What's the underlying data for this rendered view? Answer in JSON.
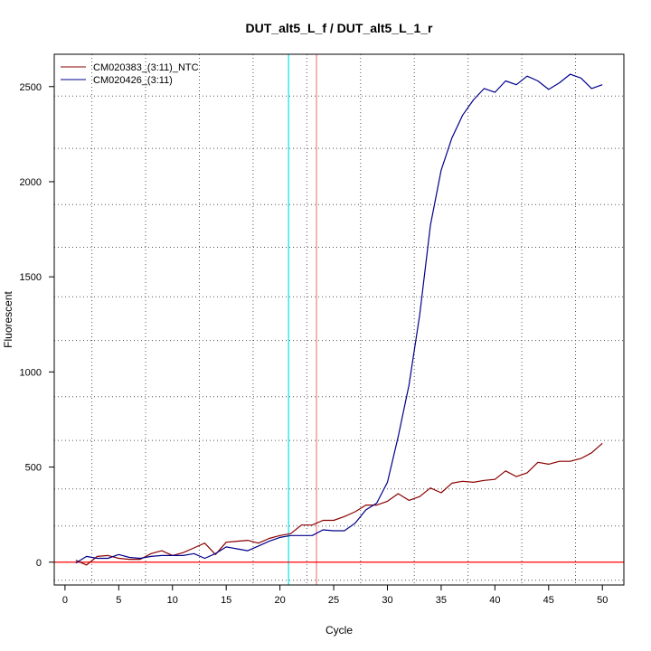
{
  "chart_data": {
    "type": "line",
    "title": "DUT_alt5_L_f / DUT_alt5_L_1_r",
    "xlabel": "Cycle",
    "ylabel": "Fluorescent",
    "xlim": [
      -1,
      52
    ],
    "ylim": [
      -120,
      2670
    ],
    "x_ticks": [
      0,
      5,
      10,
      15,
      20,
      25,
      30,
      35,
      40,
      45,
      50
    ],
    "y_ticks": [
      0,
      500,
      1000,
      1500,
      2000,
      2500
    ],
    "grid": "dotted",
    "grid_x": [
      2.5,
      7.5,
      12.5,
      17.5,
      22.5,
      27.5,
      32.5,
      37.5,
      42.5,
      47.5
    ],
    "grid_y": [
      -95,
      190,
      385,
      640,
      870,
      1165,
      1395,
      1655,
      1880,
      2175,
      2450
    ],
    "legend_position": "top-left",
    "vlines": [
      {
        "x": 20.8,
        "color": "#00e5ee"
      },
      {
        "x": 23.4,
        "color": "#f08080"
      }
    ],
    "hlines": [
      {
        "y": 0,
        "color": "#ff0000"
      }
    ],
    "series": [
      {
        "name": "CM020383_(3:11)_NTC",
        "color": "#8b0000",
        "x": [
          1,
          2,
          3,
          4,
          5,
          6,
          7,
          8,
          9,
          10,
          11,
          12,
          13,
          14,
          15,
          16,
          17,
          18,
          19,
          20,
          21,
          22,
          23,
          24,
          25,
          26,
          27,
          28,
          29,
          30,
          31,
          32,
          33,
          34,
          35,
          36,
          37,
          38,
          39,
          40,
          41,
          42,
          43,
          44,
          45,
          46,
          47,
          48,
          49,
          50
        ],
        "values": [
          10,
          -15,
          30,
          35,
          20,
          15,
          15,
          45,
          60,
          35,
          50,
          75,
          100,
          40,
          105,
          110,
          115,
          100,
          125,
          140,
          150,
          195,
          195,
          220,
          220,
          240,
          265,
          300,
          300,
          320,
          360,
          325,
          345,
          390,
          365,
          415,
          425,
          420,
          430,
          435,
          480,
          450,
          470,
          525,
          515,
          530,
          530,
          545,
          575,
          625
        ]
      },
      {
        "name": "CM020426_(3:11)",
        "color": "#00008b",
        "x": [
          1,
          2,
          3,
          4,
          5,
          6,
          7,
          8,
          9,
          10,
          11,
          12,
          13,
          14,
          15,
          16,
          17,
          18,
          19,
          20,
          21,
          22,
          23,
          24,
          25,
          26,
          27,
          28,
          29,
          30,
          31,
          32,
          33,
          34,
          35,
          36,
          37,
          38,
          39,
          40,
          41,
          42,
          43,
          44,
          45,
          46,
          47,
          48,
          49,
          50
        ],
        "values": [
          -5,
          30,
          20,
          20,
          40,
          25,
          20,
          30,
          35,
          35,
          35,
          45,
          20,
          45,
          80,
          70,
          60,
          85,
          110,
          130,
          140,
          140,
          140,
          170,
          165,
          165,
          205,
          275,
          310,
          420,
          660,
          930,
          1300,
          1770,
          2060,
          2230,
          2350,
          2430,
          2490,
          2470,
          2530,
          2510,
          2555,
          2530,
          2485,
          2520,
          2565,
          2545,
          2490,
          2510
        ]
      }
    ]
  }
}
